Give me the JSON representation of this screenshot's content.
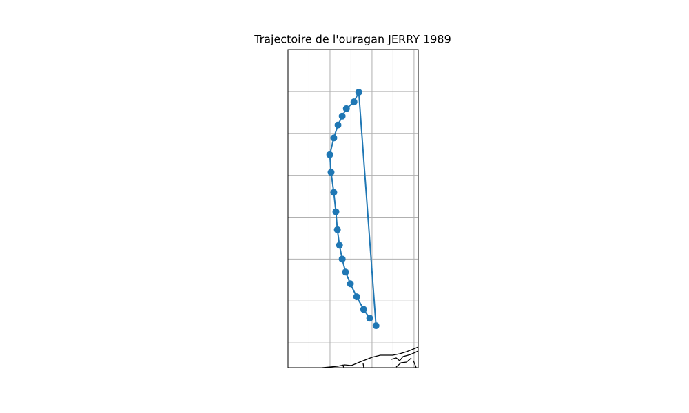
{
  "chart_data": {
    "type": "line",
    "title": "Trajectoire de l'ouragan JERRY 1989",
    "x": [
      -92.81,
      -93.63,
      -93.86,
      -94.22,
      -94.42,
      -94.62,
      -94.82,
      -95.01,
      -94.95,
      -94.82,
      -94.72,
      -94.65,
      -94.55,
      -94.42,
      -94.26,
      -94.03,
      -93.73,
      -93.4,
      -93.11
    ],
    "series": [
      {
        "color": "#1f77b4",
        "values": [
          30.41,
          35.98,
          35.75,
          35.59,
          35.41,
          35.2,
          34.89,
          34.49,
          34.07,
          33.59,
          33.13,
          32.7,
          32.33,
          32.0,
          31.69,
          31.41,
          31.1,
          30.8,
          30.59
        ]
      }
    ],
    "xlim": [
      -97.0,
      -90.8
    ],
    "ylim": [
      29.41,
      37.0
    ],
    "xticks": [
      -96,
      -95,
      -94,
      -93,
      -92,
      -91
    ],
    "yticks": [
      30,
      31,
      32,
      33,
      34,
      35,
      36
    ],
    "grid": true
  }
}
